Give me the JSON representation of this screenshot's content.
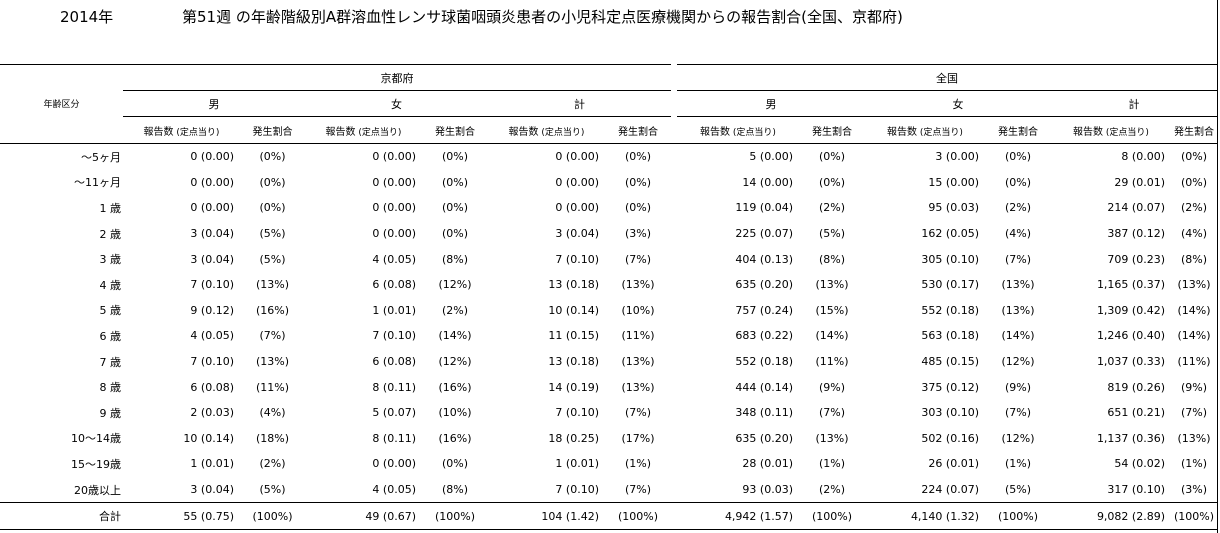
{
  "header": {
    "year": "2014年",
    "title": "第51週 の年齢階級別A群溶血性レンサ球菌咽頭炎患者の小児科定点医療機関からの報告割合(全国、京都府)"
  },
  "table": {
    "row_header_label": "年齢区分",
    "regions": [
      "京都府",
      "全国"
    ],
    "sexes": [
      "男",
      "女",
      "計"
    ],
    "col_report": "報告数",
    "col_report_sub": "(定点当り)",
    "col_rate": "発生割合",
    "rows": [
      {
        "label": "～5ヶ月",
        "cells": [
          [
            "0 (0.00)",
            "(0%)"
          ],
          [
            "0 (0.00)",
            "(0%)"
          ],
          [
            "0 (0.00)",
            "(0%)"
          ],
          [
            "5 (0.00)",
            "(0%)"
          ],
          [
            "3 (0.00)",
            "(0%)"
          ],
          [
            "8 (0.00)",
            "(0%)"
          ]
        ]
      },
      {
        "label": "～11ヶ月",
        "cells": [
          [
            "0 (0.00)",
            "(0%)"
          ],
          [
            "0 (0.00)",
            "(0%)"
          ],
          [
            "0 (0.00)",
            "(0%)"
          ],
          [
            "14 (0.00)",
            "(0%)"
          ],
          [
            "15 (0.00)",
            "(0%)"
          ],
          [
            "29 (0.01)",
            "(0%)"
          ]
        ]
      },
      {
        "label": "1 歳",
        "cells": [
          [
            "0 (0.00)",
            "(0%)"
          ],
          [
            "0 (0.00)",
            "(0%)"
          ],
          [
            "0 (0.00)",
            "(0%)"
          ],
          [
            "119 (0.04)",
            "(2%)"
          ],
          [
            "95 (0.03)",
            "(2%)"
          ],
          [
            "214 (0.07)",
            "(2%)"
          ]
        ]
      },
      {
        "label": "2 歳",
        "cells": [
          [
            "3 (0.04)",
            "(5%)"
          ],
          [
            "0 (0.00)",
            "(0%)"
          ],
          [
            "3 (0.04)",
            "(3%)"
          ],
          [
            "225 (0.07)",
            "(5%)"
          ],
          [
            "162 (0.05)",
            "(4%)"
          ],
          [
            "387 (0.12)",
            "(4%)"
          ]
        ]
      },
      {
        "label": "3 歳",
        "cells": [
          [
            "3 (0.04)",
            "(5%)"
          ],
          [
            "4 (0.05)",
            "(8%)"
          ],
          [
            "7 (0.10)",
            "(7%)"
          ],
          [
            "404 (0.13)",
            "(8%)"
          ],
          [
            "305 (0.10)",
            "(7%)"
          ],
          [
            "709 (0.23)",
            "(8%)"
          ]
        ]
      },
      {
        "label": "4 歳",
        "cells": [
          [
            "7 (0.10)",
            "(13%)"
          ],
          [
            "6 (0.08)",
            "(12%)"
          ],
          [
            "13 (0.18)",
            "(13%)"
          ],
          [
            "635 (0.20)",
            "(13%)"
          ],
          [
            "530 (0.17)",
            "(13%)"
          ],
          [
            "1,165 (0.37)",
            "(13%)"
          ]
        ]
      },
      {
        "label": "5 歳",
        "cells": [
          [
            "9 (0.12)",
            "(16%)"
          ],
          [
            "1 (0.01)",
            "(2%)"
          ],
          [
            "10 (0.14)",
            "(10%)"
          ],
          [
            "757 (0.24)",
            "(15%)"
          ],
          [
            "552 (0.18)",
            "(13%)"
          ],
          [
            "1,309 (0.42)",
            "(14%)"
          ]
        ]
      },
      {
        "label": "6 歳",
        "cells": [
          [
            "4 (0.05)",
            "(7%)"
          ],
          [
            "7 (0.10)",
            "(14%)"
          ],
          [
            "11 (0.15)",
            "(11%)"
          ],
          [
            "683 (0.22)",
            "(14%)"
          ],
          [
            "563 (0.18)",
            "(14%)"
          ],
          [
            "1,246 (0.40)",
            "(14%)"
          ]
        ]
      },
      {
        "label": "7 歳",
        "cells": [
          [
            "7 (0.10)",
            "(13%)"
          ],
          [
            "6 (0.08)",
            "(12%)"
          ],
          [
            "13 (0.18)",
            "(13%)"
          ],
          [
            "552 (0.18)",
            "(11%)"
          ],
          [
            "485 (0.15)",
            "(12%)"
          ],
          [
            "1,037 (0.33)",
            "(11%)"
          ]
        ]
      },
      {
        "label": "8 歳",
        "cells": [
          [
            "6 (0.08)",
            "(11%)"
          ],
          [
            "8 (0.11)",
            "(16%)"
          ],
          [
            "14 (0.19)",
            "(13%)"
          ],
          [
            "444 (0.14)",
            "(9%)"
          ],
          [
            "375 (0.12)",
            "(9%)"
          ],
          [
            "819 (0.26)",
            "(9%)"
          ]
        ]
      },
      {
        "label": "9 歳",
        "cells": [
          [
            "2 (0.03)",
            "(4%)"
          ],
          [
            "5 (0.07)",
            "(10%)"
          ],
          [
            "7 (0.10)",
            "(7%)"
          ],
          [
            "348 (0.11)",
            "(7%)"
          ],
          [
            "303 (0.10)",
            "(7%)"
          ],
          [
            "651 (0.21)",
            "(7%)"
          ]
        ]
      },
      {
        "label": "10～14歳",
        "cells": [
          [
            "10 (0.14)",
            "(18%)"
          ],
          [
            "8 (0.11)",
            "(16%)"
          ],
          [
            "18 (0.25)",
            "(17%)"
          ],
          [
            "635 (0.20)",
            "(13%)"
          ],
          [
            "502 (0.16)",
            "(12%)"
          ],
          [
            "1,137 (0.36)",
            "(13%)"
          ]
        ]
      },
      {
        "label": "15～19歳",
        "cells": [
          [
            "1 (0.01)",
            "(2%)"
          ],
          [
            "0 (0.00)",
            "(0%)"
          ],
          [
            "1 (0.01)",
            "(1%)"
          ],
          [
            "28 (0.01)",
            "(1%)"
          ],
          [
            "26 (0.01)",
            "(1%)"
          ],
          [
            "54 (0.02)",
            "(1%)"
          ]
        ]
      },
      {
        "label": "20歳以上",
        "cells": [
          [
            "3 (0.04)",
            "(5%)"
          ],
          [
            "4 (0.05)",
            "(8%)"
          ],
          [
            "7 (0.10)",
            "(7%)"
          ],
          [
            "93 (0.03)",
            "(2%)"
          ],
          [
            "224 (0.07)",
            "(5%)"
          ],
          [
            "317 (0.10)",
            "(3%)"
          ]
        ]
      }
    ],
    "total": {
      "label": "合計",
      "cells": [
        [
          "55 (0.75)",
          "(100%)"
        ],
        [
          "49 (0.67)",
          "(100%)"
        ],
        [
          "104 (1.42)",
          "(100%)"
        ],
        [
          "4,942 (1.57)",
          "(100%)"
        ],
        [
          "4,140 (1.32)",
          "(100%)"
        ],
        [
          "9,082 (2.89)",
          "(100%)"
        ]
      ]
    }
  }
}
